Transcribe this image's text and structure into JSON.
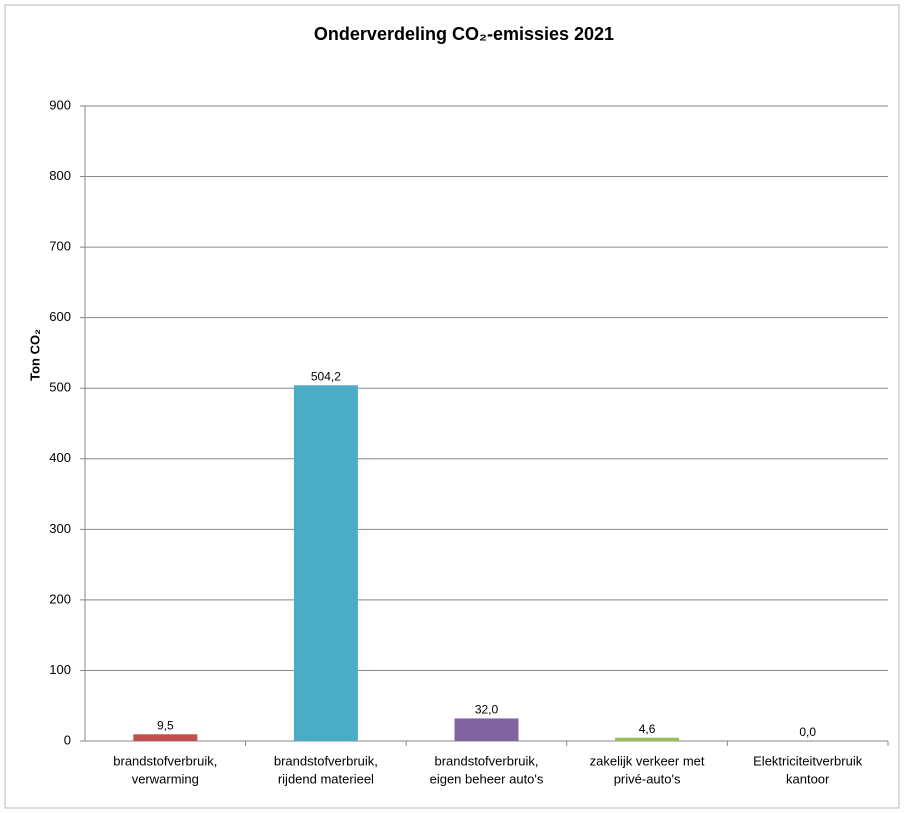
{
  "chart_data": {
    "type": "bar",
    "title": "Onderverdeling CO₂-emissies 2021",
    "y_label": "Ton CO₂",
    "categories": [
      [
        "brandstofverbruik,",
        "verwarming"
      ],
      [
        "brandstofverbruik,",
        "rijdend materieel"
      ],
      [
        "brandstofverbruik,",
        "eigen beheer auto's"
      ],
      [
        "zakelijk verkeer met",
        "privé-auto's"
      ],
      [
        "Elektriciteitverbruik",
        "kantoor"
      ]
    ],
    "values": [
      9.5,
      504.2,
      32.0,
      4.6,
      0.0
    ],
    "value_labels": [
      "9,5",
      "504,2",
      "32,0",
      "4,6",
      "0,0"
    ],
    "colors": [
      "#c0504d",
      "#4bacc6",
      "#8064a2",
      "#9bbb59",
      "#f79646"
    ],
    "ylim": [
      0,
      900
    ],
    "yticks": [
      0,
      100,
      200,
      300,
      400,
      500,
      600,
      700,
      800,
      900
    ],
    "grid": true
  }
}
